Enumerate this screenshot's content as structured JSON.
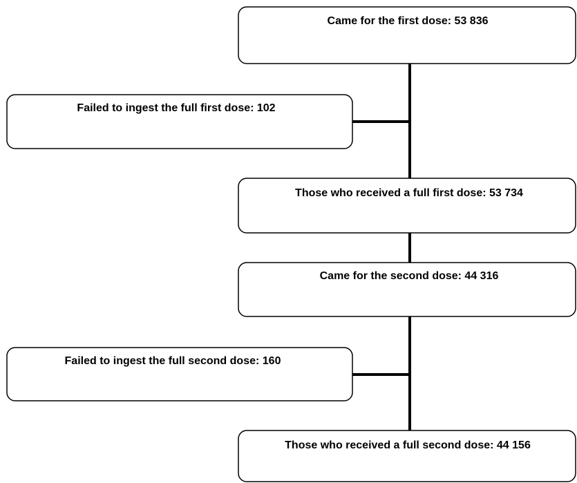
{
  "nodes": [
    {
      "label": "Came for the first dose: 53 836"
    },
    {
      "label": "Failed to ingest the full first dose: 102"
    },
    {
      "label": "Those who received a full first dose: 53 734"
    },
    {
      "label": "Came for the second dose: 44 316"
    },
    {
      "label": "Failed to ingest the full second dose: 160"
    },
    {
      "label": "Those who received a full second dose: 44 156"
    }
  ]
}
